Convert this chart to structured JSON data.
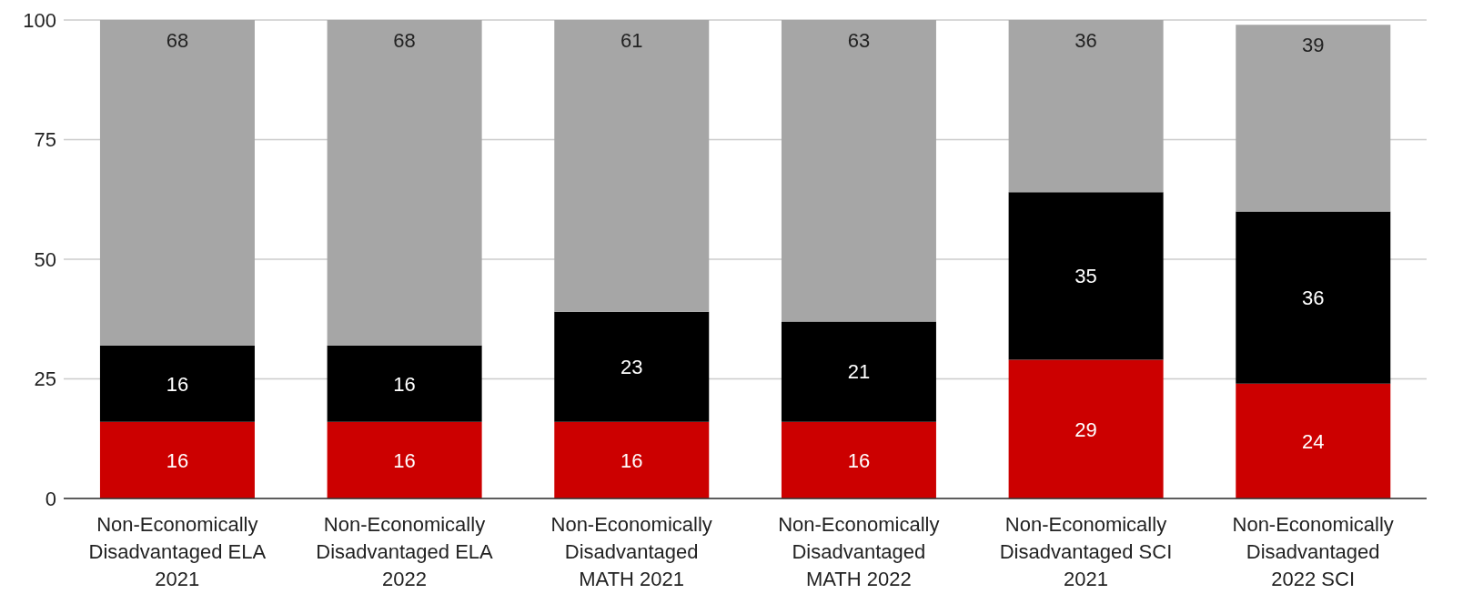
{
  "chart_data": {
    "type": "bar",
    "stacked": true,
    "categories": [
      "Non-Economically Disadvantaged ELA 2021",
      "Non-Economically Disadvantaged ELA 2022",
      "Non-Economically Disadvantaged MATH 2021",
      "Non-Economically Disadvantaged MATH 2022",
      "Non-Economically Disadvantaged SCI 2021",
      "Non-Economically Disadvantaged 2022 SCI"
    ],
    "series": [
      {
        "color": "#cc0000",
        "values": [
          16,
          16,
          16,
          16,
          29,
          24
        ]
      },
      {
        "color": "#000000",
        "values": [
          16,
          16,
          23,
          21,
          35,
          36
        ]
      },
      {
        "color": "#a6a6a6",
        "values": [
          68,
          68,
          61,
          63,
          36,
          39
        ]
      }
    ],
    "ylim": [
      0,
      100
    ],
    "yticks": [
      0,
      25,
      50,
      75,
      100
    ],
    "grid": "y",
    "legend": false,
    "data_labels": true
  }
}
